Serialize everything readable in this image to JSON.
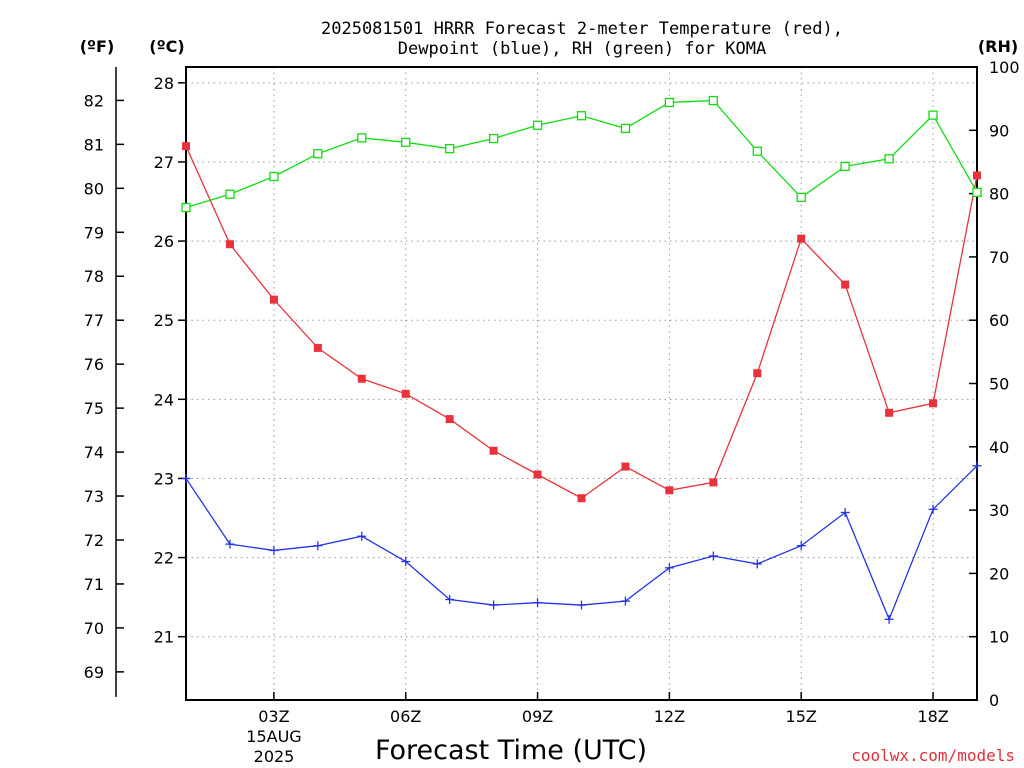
{
  "title_line1": "2025081501 HRRR Forecast 2-meter Temperature (red),",
  "title_line2": "Dewpoint (blue), RH (green) for KOMA",
  "units": {
    "fahrenheit": "(ºF)",
    "celsius": "(ºC)",
    "rh": "(RH)"
  },
  "xlabel": "Forecast Time (UTC)",
  "date_label": [
    "15AUG",
    "2025"
  ],
  "credit": "coolwx.com/models",
  "colors": {
    "temperature": "#e8323c",
    "dewpoint": "#2233e8",
    "rh": "#10dd10"
  },
  "chart_data": {
    "type": "line",
    "title": "2025081501 HRRR Forecast 2-meter Temperature (red), Dewpoint (blue), RH (green) for KOMA",
    "xlabel": "Forecast Time (UTC)",
    "x_hours": [
      1,
      2,
      3,
      4,
      5,
      6,
      7,
      8,
      9,
      10,
      11,
      12,
      13,
      14,
      15,
      16,
      17,
      18,
      19
    ],
    "x_ticks": [
      {
        "hour": 3,
        "label": "03Z"
      },
      {
        "hour": 6,
        "label": "06Z"
      },
      {
        "hour": 9,
        "label": "09Z"
      },
      {
        "hour": 12,
        "label": "12Z"
      },
      {
        "hour": 15,
        "label": "15Z"
      },
      {
        "hour": 18,
        "label": "18Z"
      }
    ],
    "xlim": [
      1,
      19
    ],
    "ylim_celsius": [
      20.2,
      28.2
    ],
    "ylim_rh": [
      0,
      100
    ],
    "celsius_ticks": [
      21,
      22,
      23,
      24,
      25,
      26,
      27,
      28
    ],
    "fahrenheit_ticks": [
      69,
      70,
      71,
      72,
      73,
      74,
      75,
      76,
      77,
      78,
      79,
      80,
      81,
      82
    ],
    "rh_ticks": [
      0,
      10,
      20,
      30,
      40,
      50,
      60,
      70,
      80,
      90,
      100
    ],
    "grid": true,
    "series": [
      {
        "key": "temperature",
        "marker": "square-filled",
        "unit": "C",
        "values": [
          27.2,
          25.96,
          25.26,
          24.65,
          24.26,
          24.07,
          23.75,
          23.35,
          23.05,
          22.75,
          23.15,
          22.85,
          22.95,
          24.33,
          26.03,
          25.45,
          23.83,
          23.95,
          26.83
        ]
      },
      {
        "key": "dewpoint",
        "marker": "plus",
        "unit": "C",
        "values": [
          23.0,
          22.17,
          22.09,
          22.15,
          22.27,
          21.95,
          21.47,
          21.4,
          21.43,
          21.4,
          21.45,
          21.87,
          22.02,
          21.92,
          22.15,
          22.57,
          21.22,
          22.61,
          23.16
        ]
      },
      {
        "key": "rh",
        "marker": "square-open",
        "unit": "%",
        "values": [
          77.8,
          79.9,
          82.7,
          86.3,
          88.8,
          88.1,
          87.1,
          88.7,
          90.8,
          92.3,
          90.3,
          94.4,
          94.7,
          86.7,
          79.4,
          84.3,
          85.5,
          92.4,
          80.2
        ]
      }
    ]
  }
}
